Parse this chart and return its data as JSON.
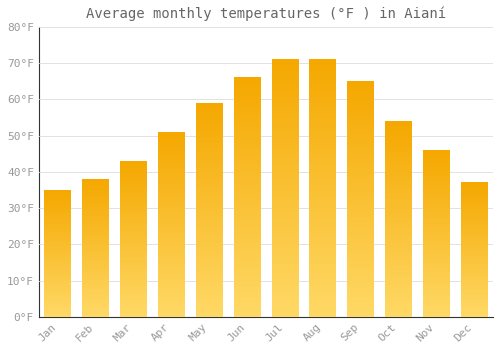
{
  "title": "Average monthly temperatures (°F ) in Aianí",
  "months": [
    "Jan",
    "Feb",
    "Mar",
    "Apr",
    "May",
    "Jun",
    "Jul",
    "Aug",
    "Sep",
    "Oct",
    "Nov",
    "Dec"
  ],
  "values": [
    35,
    38,
    43,
    51,
    59,
    66,
    71,
    71,
    65,
    54,
    46,
    37
  ],
  "bar_color_top": "#F5A800",
  "bar_color_bottom": "#FFD966",
  "background_color": "#FFFFFF",
  "grid_color": "#DDDDDD",
  "ylim": [
    0,
    80
  ],
  "yticks": [
    0,
    10,
    20,
    30,
    40,
    50,
    60,
    70,
    80
  ],
  "ytick_labels": [
    "0°F",
    "10°F",
    "20°F",
    "30°F",
    "40°F",
    "50°F",
    "60°F",
    "70°F",
    "80°F"
  ],
  "title_fontsize": 10,
  "tick_fontsize": 8,
  "text_color": "#999999",
  "spine_color": "#333333"
}
